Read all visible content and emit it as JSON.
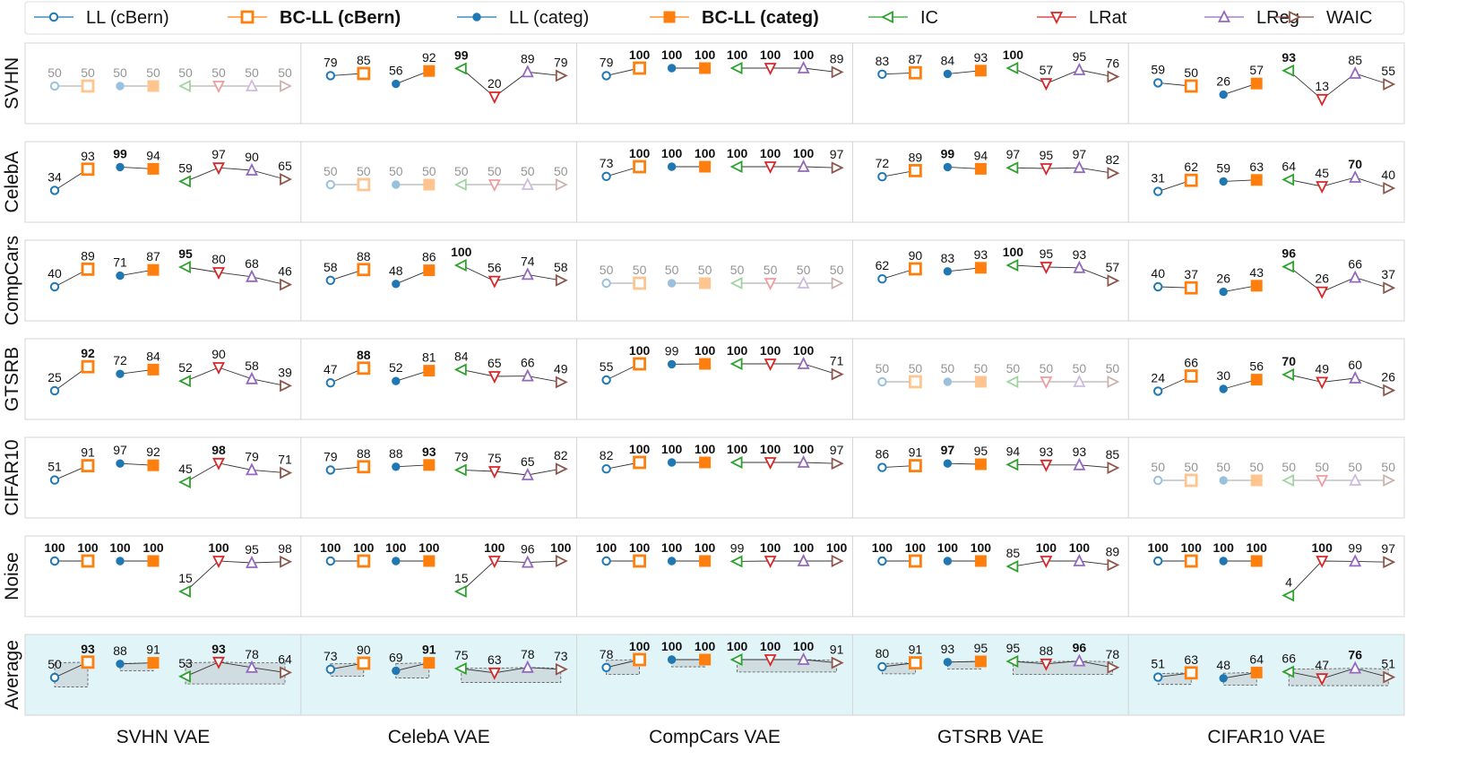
{
  "chart_data": {
    "type": "line",
    "title": "",
    "colors": {
      "ll_cbern": "#1f77b4",
      "bcll": "#ff7f0e",
      "ll_categ": "#1f77b4",
      "ic": "#2ca02c",
      "lrat": "#d62728",
      "lreg": "#9467bd",
      "waic": "#8c564b",
      "avg_bg": "#e1f4f8",
      "band": "#c7d3d7"
    },
    "legend": [
      {
        "key": "ll_cbern",
        "label": "LL (cBern)",
        "bold": false,
        "marker": "circle-open"
      },
      {
        "key": "bcll_cbern",
        "label": "BC-LL (cBern)",
        "bold": true,
        "marker": "square-open"
      },
      {
        "key": "ll_categ",
        "label": "LL (categ)",
        "bold": false,
        "marker": "circle-filled"
      },
      {
        "key": "bcll_categ",
        "label": "BC-LL (categ)",
        "bold": true,
        "marker": "square-filled"
      },
      {
        "key": "ic",
        "label": "IC",
        "bold": false,
        "marker": "tri-left"
      },
      {
        "key": "lrat",
        "label": "LRat",
        "bold": false,
        "marker": "tri-down"
      },
      {
        "key": "lreg",
        "label": "LReg",
        "bold": false,
        "marker": "tri-up"
      },
      {
        "key": "waic",
        "label": "WAIC",
        "bold": false,
        "marker": "tri-right"
      }
    ],
    "columns": [
      "SVHN VAE",
      "CelebA VAE",
      "CompCars VAE",
      "GTSRB VAE",
      "CIFAR10 VAE"
    ],
    "rows": [
      "SVHN",
      "CelebA",
      "CompCars",
      "GTSRB",
      "CIFAR10",
      "Noise",
      "Average"
    ],
    "series_order": [
      "LL (cBern)",
      "BC-LL (cBern)",
      "LL (categ)",
      "BC-LL (categ)",
      "IC",
      "LRat",
      "LReg",
      "WAIC"
    ],
    "values": [
      [
        [
          50,
          50,
          50,
          50,
          50,
          50,
          50,
          50
        ],
        [
          79,
          85,
          56,
          92,
          99,
          20,
          89,
          79
        ],
        [
          79,
          100,
          100,
          100,
          100,
          100,
          100,
          89
        ],
        [
          83,
          87,
          84,
          93,
          100,
          57,
          95,
          76
        ],
        [
          59,
          50,
          26,
          57,
          93,
          13,
          85,
          55
        ]
      ],
      [
        [
          34,
          93,
          99,
          94,
          59,
          97,
          90,
          65
        ],
        [
          50,
          50,
          50,
          50,
          50,
          50,
          50,
          50
        ],
        [
          73,
          100,
          100,
          100,
          100,
          100,
          100,
          97
        ],
        [
          72,
          89,
          99,
          94,
          97,
          95,
          97,
          82
        ],
        [
          31,
          62,
          59,
          63,
          64,
          45,
          70,
          40
        ]
      ],
      [
        [
          40,
          89,
          71,
          87,
          95,
          80,
          68,
          46
        ],
        [
          58,
          88,
          48,
          86,
          100,
          56,
          74,
          58
        ],
        [
          50,
          50,
          50,
          50,
          50,
          50,
          50,
          50
        ],
        [
          62,
          90,
          83,
          93,
          100,
          95,
          93,
          57
        ],
        [
          40,
          37,
          26,
          43,
          96,
          26,
          66,
          37
        ]
      ],
      [
        [
          25,
          92,
          72,
          84,
          52,
          90,
          58,
          39
        ],
        [
          47,
          88,
          52,
          81,
          84,
          65,
          66,
          49
        ],
        [
          55,
          100,
          99,
          100,
          100,
          100,
          100,
          71
        ],
        [
          50,
          50,
          50,
          50,
          50,
          50,
          50,
          50
        ],
        [
          24,
          66,
          30,
          56,
          70,
          49,
          60,
          26
        ]
      ],
      [
        [
          51,
          91,
          97,
          92,
          45,
          98,
          79,
          71
        ],
        [
          79,
          88,
          88,
          93,
          79,
          75,
          65,
          82
        ],
        [
          82,
          100,
          100,
          100,
          100,
          100,
          100,
          97
        ],
        [
          86,
          91,
          97,
          95,
          94,
          93,
          93,
          85
        ],
        [
          50,
          50,
          50,
          50,
          50,
          50,
          50,
          50
        ]
      ],
      [
        [
          100,
          100,
          100,
          100,
          15,
          100,
          95,
          98
        ],
        [
          100,
          100,
          100,
          100,
          15,
          100,
          96,
          100
        ],
        [
          100,
          100,
          100,
          100,
          99,
          100,
          100,
          100
        ],
        [
          100,
          100,
          100,
          100,
          85,
          100,
          100,
          89
        ],
        [
          100,
          100,
          100,
          100,
          4,
          100,
          99,
          97
        ]
      ],
      [
        [
          50,
          93,
          88,
          91,
          53,
          93,
          78,
          64
        ],
        [
          73,
          90,
          69,
          91,
          75,
          63,
          78,
          73
        ],
        [
          78,
          100,
          100,
          100,
          100,
          100,
          100,
          91
        ],
        [
          80,
          91,
          93,
          95,
          95,
          88,
          96,
          78
        ],
        [
          51,
          63,
          48,
          64,
          66,
          47,
          76,
          51
        ]
      ]
    ],
    "bold": [
      [
        [
          0,
          0,
          0,
          0,
          0,
          0,
          0,
          0
        ],
        [
          0,
          0,
          0,
          0,
          1,
          0,
          0,
          0
        ],
        [
          0,
          1,
          1,
          1,
          1,
          1,
          1,
          0
        ],
        [
          0,
          0,
          0,
          0,
          1,
          0,
          0,
          0
        ],
        [
          0,
          0,
          0,
          0,
          1,
          0,
          0,
          0
        ]
      ],
      [
        [
          0,
          0,
          1,
          0,
          0,
          0,
          0,
          0
        ],
        [
          0,
          0,
          0,
          0,
          0,
          0,
          0,
          0
        ],
        [
          0,
          1,
          1,
          1,
          1,
          1,
          1,
          0
        ],
        [
          0,
          0,
          1,
          0,
          0,
          0,
          0,
          0
        ],
        [
          0,
          0,
          0,
          0,
          0,
          0,
          1,
          0
        ]
      ],
      [
        [
          0,
          0,
          0,
          0,
          1,
          0,
          0,
          0
        ],
        [
          0,
          0,
          0,
          0,
          1,
          0,
          0,
          0
        ],
        [
          0,
          0,
          0,
          0,
          0,
          0,
          0,
          0
        ],
        [
          0,
          0,
          0,
          0,
          1,
          0,
          0,
          0
        ],
        [
          0,
          0,
          0,
          0,
          1,
          0,
          0,
          0
        ]
      ],
      [
        [
          0,
          1,
          0,
          0,
          0,
          0,
          0,
          0
        ],
        [
          0,
          1,
          0,
          0,
          0,
          0,
          0,
          0
        ],
        [
          0,
          1,
          0,
          1,
          1,
          1,
          1,
          0
        ],
        [
          0,
          0,
          0,
          0,
          0,
          0,
          0,
          0
        ],
        [
          0,
          0,
          0,
          0,
          1,
          0,
          0,
          0
        ]
      ],
      [
        [
          0,
          0,
          0,
          0,
          0,
          1,
          0,
          0
        ],
        [
          0,
          0,
          0,
          1,
          0,
          0,
          0,
          0
        ],
        [
          0,
          1,
          1,
          1,
          1,
          1,
          1,
          0
        ],
        [
          0,
          0,
          1,
          0,
          0,
          0,
          0,
          0
        ],
        [
          0,
          0,
          0,
          0,
          0,
          0,
          0,
          0
        ]
      ],
      [
        [
          1,
          1,
          1,
          1,
          0,
          1,
          0,
          0
        ],
        [
          1,
          1,
          1,
          1,
          0,
          1,
          0,
          1
        ],
        [
          1,
          1,
          1,
          1,
          0,
          1,
          1,
          1
        ],
        [
          1,
          1,
          1,
          1,
          0,
          1,
          1,
          0
        ],
        [
          1,
          1,
          1,
          1,
          0,
          1,
          0,
          0
        ]
      ],
      [
        [
          0,
          1,
          0,
          0,
          0,
          1,
          0,
          0
        ],
        [
          0,
          0,
          0,
          1,
          0,
          0,
          0,
          0
        ],
        [
          0,
          1,
          1,
          1,
          1,
          1,
          1,
          0
        ],
        [
          0,
          0,
          0,
          0,
          0,
          0,
          1,
          0
        ],
        [
          0,
          0,
          0,
          0,
          0,
          0,
          1,
          0
        ]
      ]
    ],
    "bands": [
      [
        [
          0,
          93
        ],
        [
          0,
          70
        ],
        [
          0,
          74
        ],
        [
          0,
          64
        ]
      ],
      [
        [
          0,
          70
        ],
        [
          0,
          73
        ],
        [
          0,
          95
        ],
        [
          0,
          73
        ]
      ],
      [
        [
          0,
          70
        ],
        [
          0,
          72
        ],
        [
          0,
          92
        ],
        [
          0,
          76
        ]
      ],
      [
        [
          0,
          70
        ],
        [
          0,
          70
        ],
        [
          0,
          70
        ],
        [
          0,
          67
        ]
      ],
      [
        [
          0,
          72
        ],
        [
          0,
          70
        ],
        [
          0,
          70
        ],
        [
          0,
          70
        ]
      ]
    ],
    "ylim": [
      0,
      100
    ],
    "grid": false
  }
}
